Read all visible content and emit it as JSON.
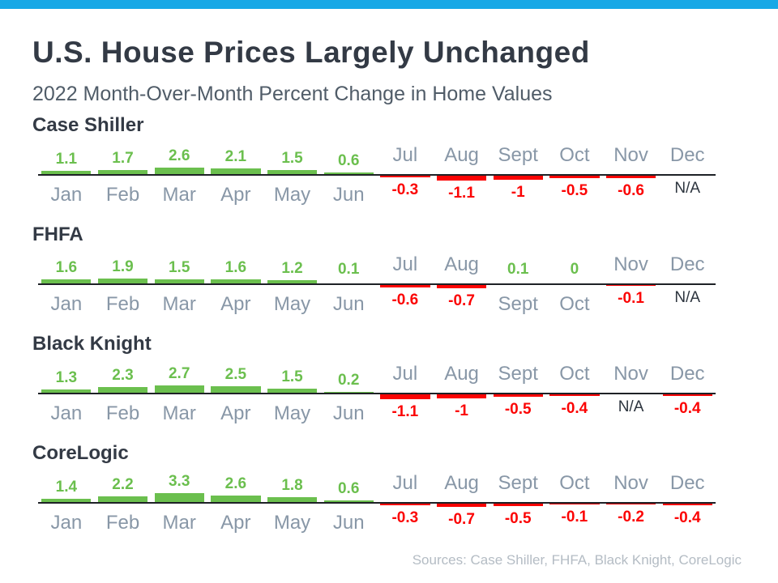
{
  "page": {
    "title": "U.S. House Prices Largely Unchanged",
    "subtitle": "2022 Month-Over-Month Percent Change in Home Values",
    "footer": "Sources: Case Shiller, FHFA, Black Knight, CoreLogic"
  },
  "colors": {
    "accent_bar": "#17a8e6",
    "positive": "#6bbf4e",
    "negative": "#fb0404",
    "axis": "#1e2126",
    "month_label": "#8897a7",
    "heading": "#333a45",
    "subtitle_text": "#505c68",
    "na_text": "#2c343e",
    "footer_text": "#b4bcc4"
  },
  "chart_data": {
    "type": "bar",
    "title": "U.S. House Prices Largely Unchanged",
    "subtitle": "2022 Month-Over-Month Percent Change in Home Values",
    "unit": "percent",
    "grid": false,
    "legend_position": "none",
    "value_range": [
      -1.1,
      3.3
    ],
    "categories": [
      "Jan",
      "Feb",
      "Mar",
      "Apr",
      "May",
      "Jun",
      "Jul",
      "Aug",
      "Sept",
      "Oct",
      "Nov",
      "Dec"
    ],
    "series": [
      {
        "name": "Case Shiller",
        "values": [
          1.1,
          1.7,
          2.6,
          2.1,
          1.5,
          0.6,
          -0.3,
          -1.1,
          -1,
          -0.5,
          -0.6,
          null
        ],
        "labels": [
          "1.1",
          "1.7",
          "2.6",
          "2.1",
          "1.5",
          "0.6",
          "-0.3",
          "-1.1",
          "-1",
          "-0.5",
          "-0.6",
          "N/A"
        ]
      },
      {
        "name": "FHFA",
        "values": [
          1.6,
          1.9,
          1.5,
          1.6,
          1.2,
          0.1,
          -0.6,
          -0.7,
          0.1,
          0,
          -0.1,
          null
        ],
        "labels": [
          "1.6",
          "1.9",
          "1.5",
          "1.6",
          "1.2",
          "0.1",
          "-0.6",
          "-0.7",
          "0.1",
          "0",
          "-0.1",
          "N/A"
        ]
      },
      {
        "name": "Black Knight",
        "values": [
          1.3,
          2.3,
          2.7,
          2.5,
          1.5,
          0.2,
          -1.1,
          -1,
          -0.5,
          -0.4,
          null,
          -0.4
        ],
        "labels": [
          "1.3",
          "2.3",
          "2.7",
          "2.5",
          "1.5",
          "0.2",
          "-1.1",
          "-1",
          "-0.5",
          "-0.4",
          "N/A",
          "-0.4"
        ]
      },
      {
        "name": "CoreLogic",
        "values": [
          1.4,
          2.2,
          3.3,
          2.6,
          1.8,
          0.6,
          -0.3,
          -0.7,
          -0.5,
          -0.1,
          -0.2,
          -0.4
        ],
        "labels": [
          "1.4",
          "2.2",
          "3.3",
          "2.6",
          "1.8",
          "0.6",
          "-0.3",
          "-0.7",
          "-0.5",
          "-0.1",
          "-0.2",
          "-0.4"
        ]
      }
    ]
  }
}
